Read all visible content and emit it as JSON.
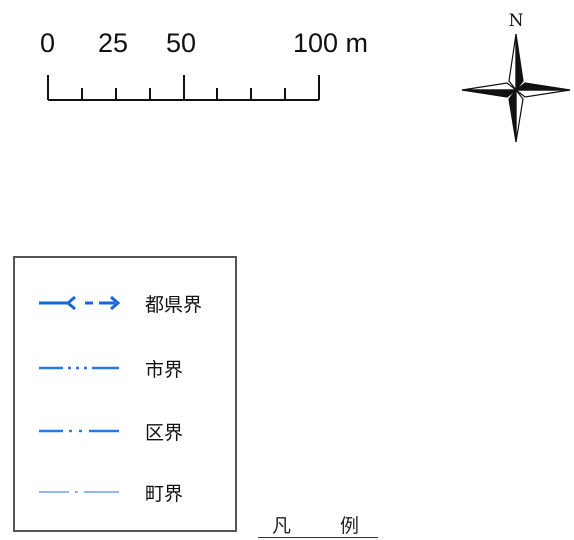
{
  "scale_bar": {
    "labels": [
      "0",
      "25",
      "50",
      "100 m"
    ],
    "color": "#111111"
  },
  "compass": {
    "north_label": "N",
    "color": "#111111"
  },
  "legend": {
    "title_chars": [
      "凡",
      "例"
    ],
    "items": [
      {
        "label": "都県界",
        "line_style": "prefecture-boundary",
        "color": "#1a66d9"
      },
      {
        "label": "市界",
        "line_style": "city-boundary",
        "color": "#2a78e6"
      },
      {
        "label": "区界",
        "line_style": "ward-boundary",
        "color": "#2a78e6"
      },
      {
        "label": "町界",
        "line_style": "town-boundary",
        "color": "#6ea0e8"
      }
    ]
  }
}
